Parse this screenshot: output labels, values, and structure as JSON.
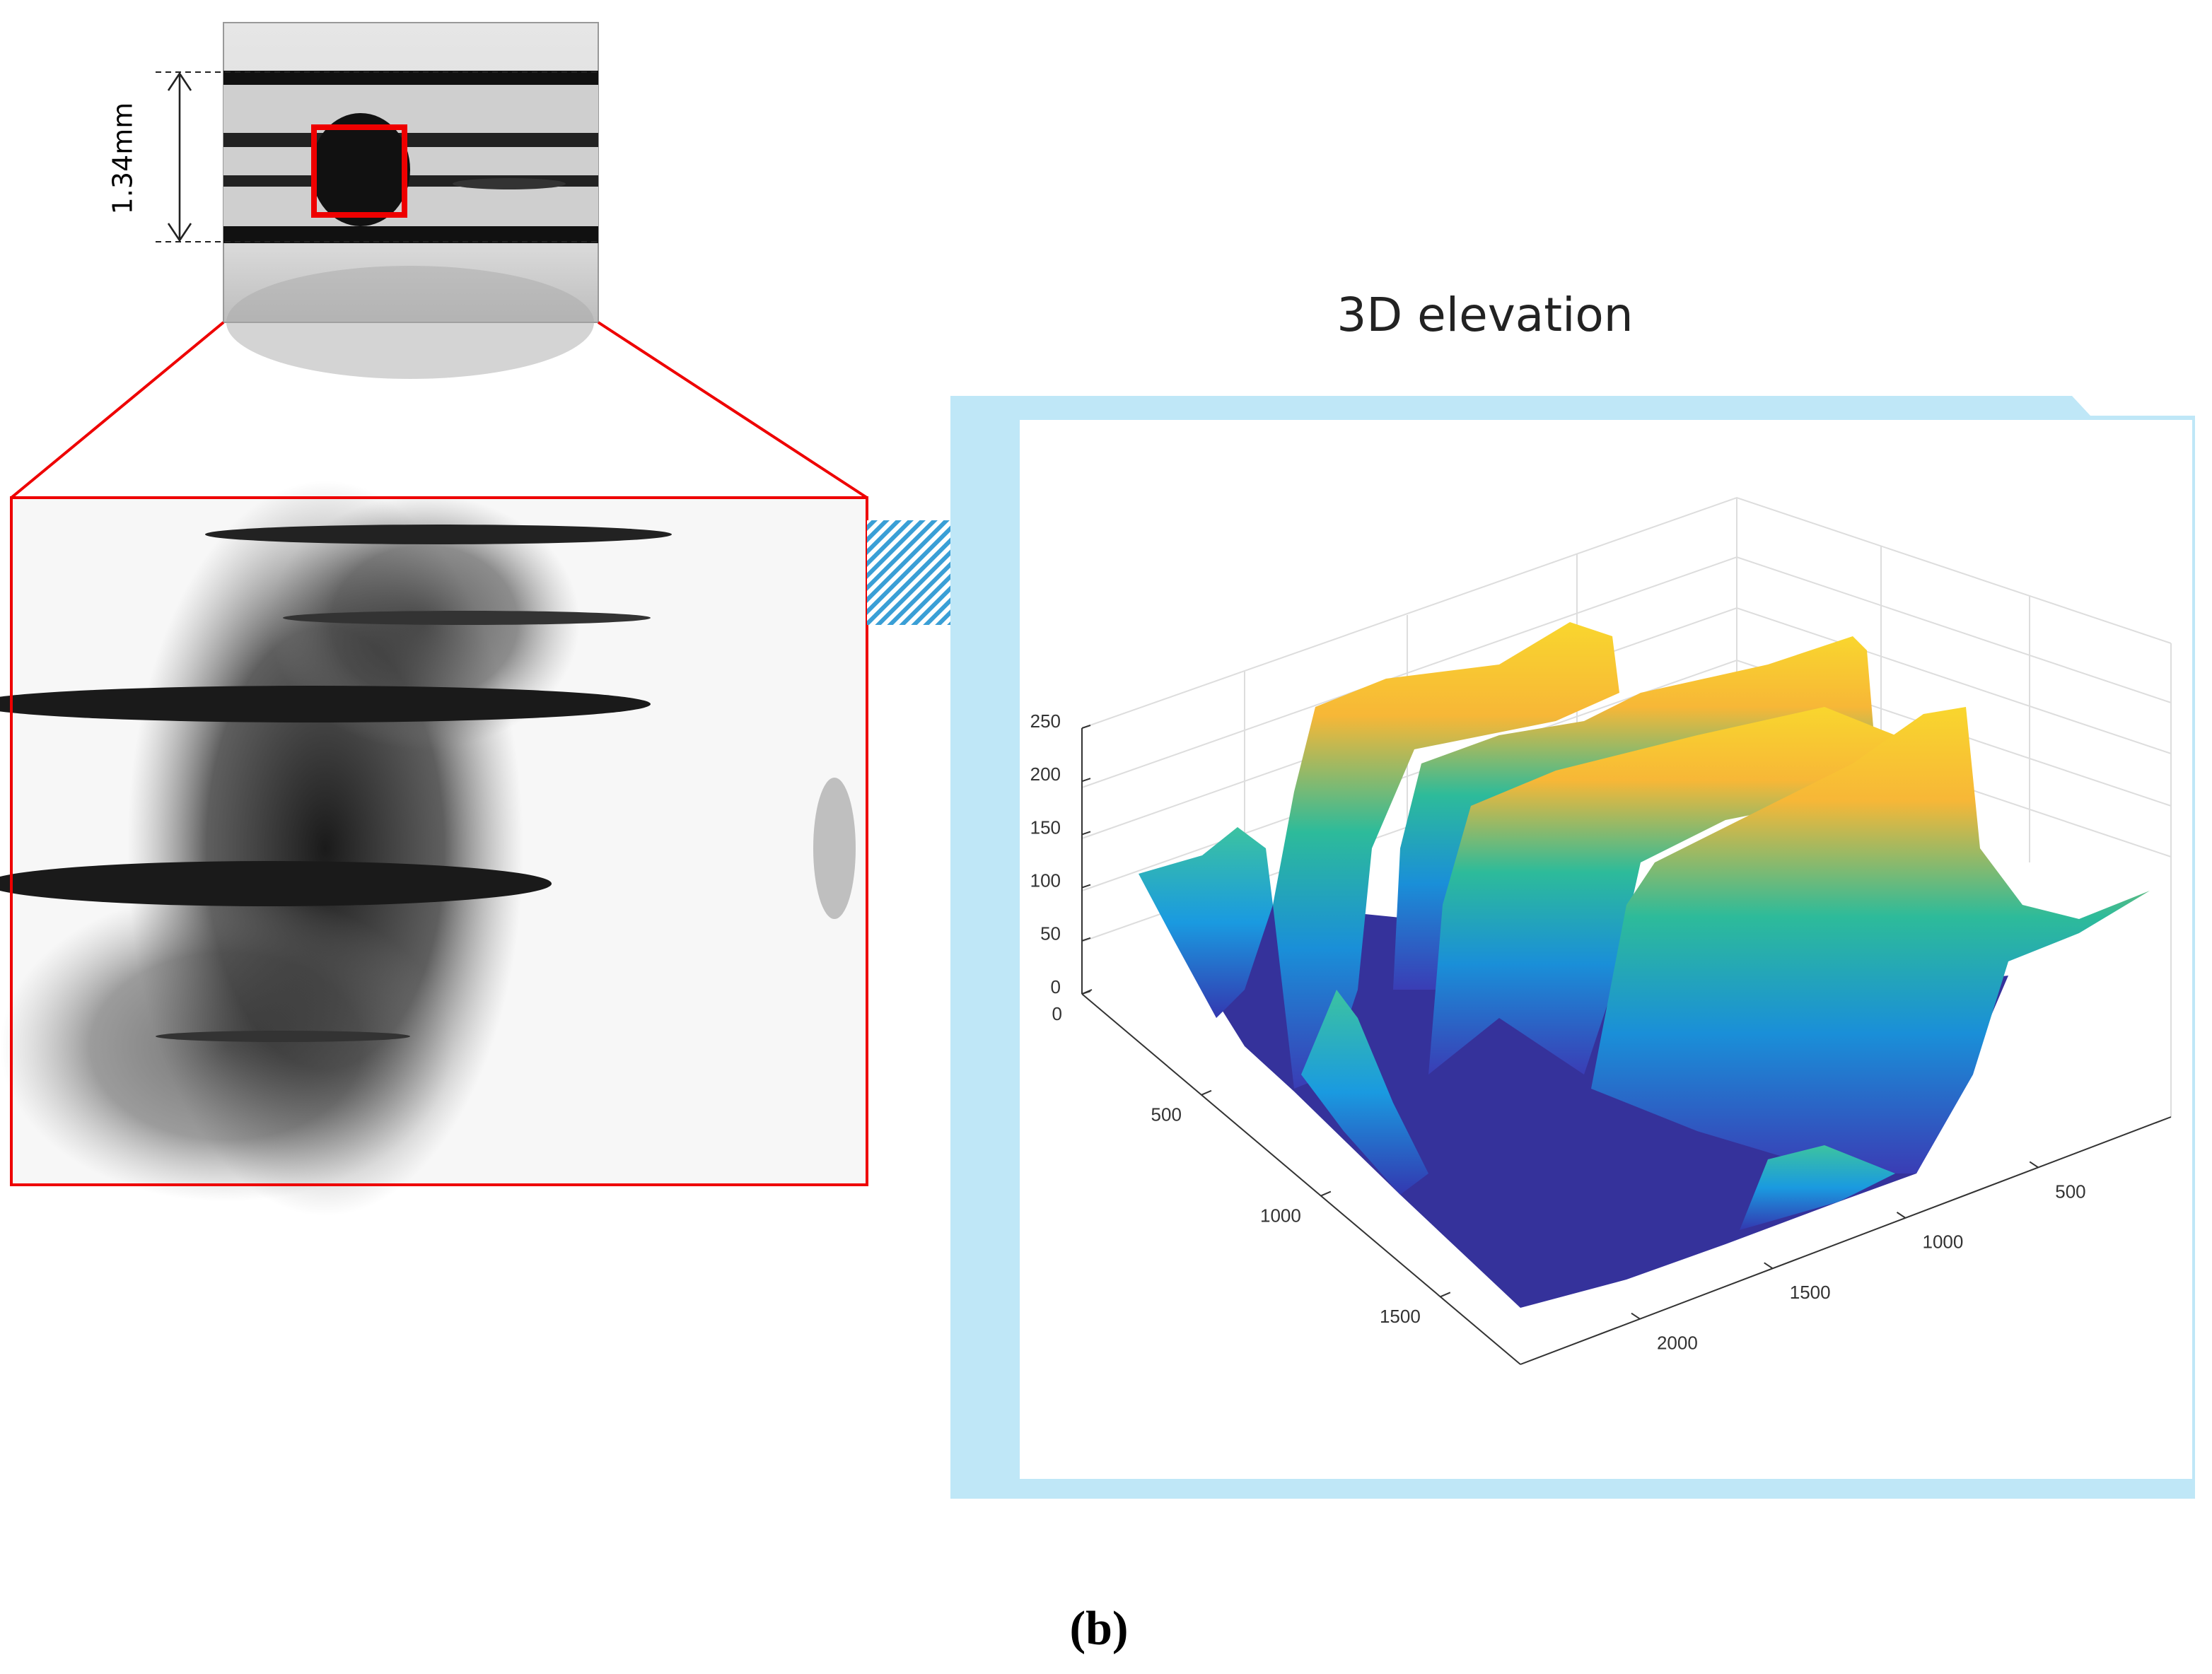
{
  "scale_bar": {
    "label": "1.34mm"
  },
  "elevation_plot": {
    "title": "3D elevation",
    "z_ticks": [
      0,
      50,
      100,
      150,
      200,
      250
    ],
    "left_axis_ticks": [
      0,
      500,
      1000,
      1500
    ],
    "right_axis_ticks": [
      500,
      1000,
      1500,
      2000
    ]
  },
  "caption": {
    "label": "(b)"
  }
}
